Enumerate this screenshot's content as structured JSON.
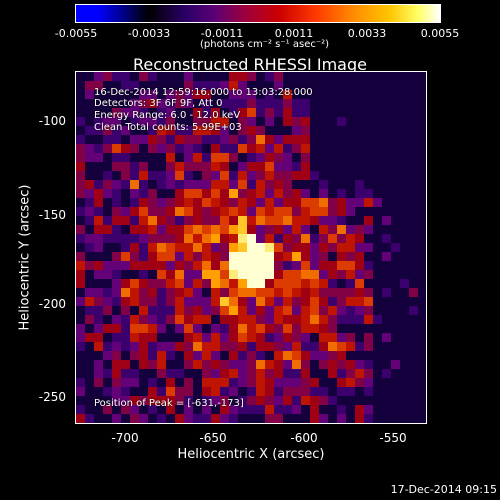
{
  "colorbar": {
    "ticks": [
      "-0.0055",
      "-0.0033",
      "-0.0011",
      "0.0011",
      "0.0033",
      "0.0055"
    ],
    "units": "(photons cm⁻² s⁻¹ asec⁻²)"
  },
  "title": "Reconstructed RHESSI Image",
  "annotations": {
    "time_range": "16-Dec-2014 12:59:16.000 to 13:03:28.000",
    "detectors": "Detectors: 3F 6F 9F, Att 0",
    "energy": "Energy Range: 6.0 - 12.0 keV",
    "method": "Clean    Total counts: 5.99E+03",
    "peak": "Position of Peak = [-631,-173]"
  },
  "axes": {
    "xlabel": "Heliocentric X (arcsec)",
    "ylabel": "Heliocentric Y (arcsec)",
    "xticks": [
      "-700",
      "-650",
      "-600",
      "-550"
    ],
    "yticks": [
      "-100",
      "-150",
      "-200",
      "-250"
    ]
  },
  "footer_date": "17-Dec-2014 09:15",
  "image": {
    "peak_x": -631,
    "peak_y": -173
  }
}
